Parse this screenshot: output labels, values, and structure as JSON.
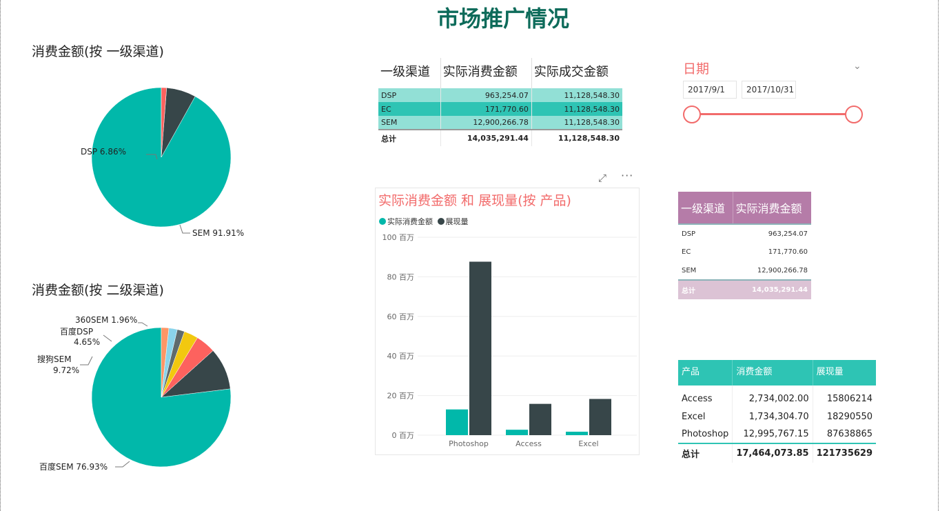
{
  "page_title": "市场推广情况",
  "colors": {
    "teal": "#01b8aa",
    "dark": "#374649",
    "red": "#fd625e",
    "yellow": "#f2c80f",
    "gray": "#5f6b6d",
    "lightblue": "#8ad4eb",
    "orange": "#fe9666",
    "accent_red": "#f26b6b"
  },
  "chart_data": [
    {
      "type": "pie",
      "title": "消费金额(按 一级渠道)",
      "slices": [
        {
          "label": "SEM 91.91%",
          "value": 91.91,
          "color": "#01b8aa"
        },
        {
          "label": "DSP 6.86%",
          "value": 6.86,
          "color": "#374649"
        },
        {
          "label": "",
          "value": 1.23,
          "color": "#fd625e"
        }
      ]
    },
    {
      "type": "pie",
      "title": "消费金额(按 二级渠道)",
      "slices": [
        {
          "label": "百度SEM 76.93%",
          "value": 76.93,
          "color": "#01b8aa"
        },
        {
          "label": "搜狗SEM 9.72%",
          "value": 9.72,
          "color": "#374649"
        },
        {
          "label": "百度DSP 4.65%",
          "value": 4.65,
          "color": "#fd625e"
        },
        {
          "label": "",
          "value": 3.3,
          "color": "#f2c80f"
        },
        {
          "label": "",
          "value": 1.7,
          "color": "#5f6b6d"
        },
        {
          "label": "360SEM 1.96%",
          "value": 1.96,
          "color": "#8ad4eb"
        },
        {
          "label": "",
          "value": 1.74,
          "color": "#fe9666"
        }
      ]
    },
    {
      "type": "bar",
      "title": "实际消费金额 和 展现量(按 产品)",
      "categories": [
        "Photoshop",
        "Access",
        "Excel"
      ],
      "series": [
        {
          "name": "实际消费金额",
          "values": [
            12995767.15,
            2734002.0,
            1734304.7
          ],
          "color": "#01b8aa"
        },
        {
          "name": "展现量",
          "values": [
            87638865,
            15806214,
            18290550
          ],
          "color": "#374649"
        }
      ],
      "y_ticks": [
        "0 百万",
        "20 百万",
        "40 百万",
        "60 百万",
        "80 百万",
        "100 百万"
      ],
      "ylim": [
        0,
        100000000
      ]
    }
  ],
  "table1": {
    "headers": [
      "一级渠道",
      "实际消费金额",
      "实际成交金额"
    ],
    "rows": [
      [
        "DSP",
        "963,254.07",
        "11,128,548.30"
      ],
      [
        "EC",
        "171,770.60",
        "11,128,548.30"
      ],
      [
        "SEM",
        "12,900,266.78",
        "11,128,548.30"
      ]
    ],
    "total": [
      "总计",
      "14,035,291.44",
      "11,128,548.30"
    ]
  },
  "slicer": {
    "title": "日期",
    "start": "2017/9/1",
    "end": "2017/10/31"
  },
  "table2": {
    "headers": [
      "一级渠道",
      "实际消费金额"
    ],
    "rows": [
      [
        "DSP",
        "963,254.07"
      ],
      [
        "EC",
        "171,770.60"
      ],
      [
        "SEM",
        "12,900,266.78"
      ]
    ],
    "total": [
      "总计",
      "14,035,291.44"
    ]
  },
  "table3": {
    "headers": [
      "产品",
      "消费金额",
      "展现量"
    ],
    "rows": [
      [
        "Access",
        "2,734,002.00",
        "15806214"
      ],
      [
        "Excel",
        "1,734,304.70",
        "18290550"
      ],
      [
        "Photoshop",
        "12,995,767.15",
        "87638865"
      ]
    ],
    "total": [
      "总计",
      "17,464,073.85",
      "121735629"
    ]
  },
  "icons": {
    "focus": "focus-mode-icon",
    "more": "more-options-icon",
    "chevron": "chevron-down-icon"
  }
}
